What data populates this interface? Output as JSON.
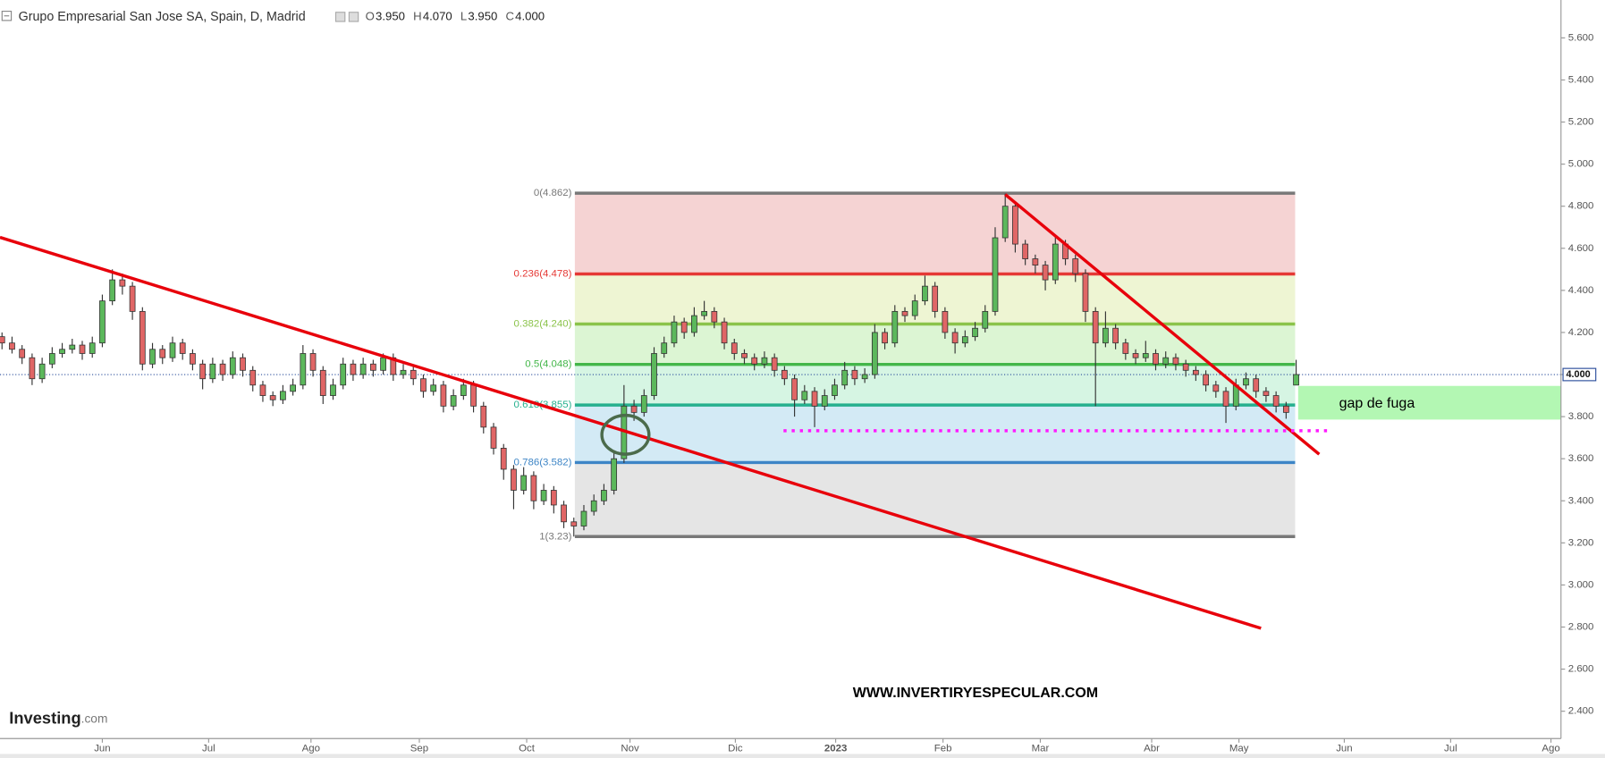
{
  "chart_data": {
    "type": "candlestick",
    "title": "Grupo Empresarial San Jose SA, Spain, D, Madrid",
    "header_ohlc": [
      {
        "key": "O",
        "value": "3.950"
      },
      {
        "key": "H",
        "value": "4.070"
      },
      {
        "key": "L",
        "value": "3.950"
      },
      {
        "key": "C",
        "value": "4.000"
      }
    ],
    "up_color": "#5cb85c",
    "down_color": "#e06666",
    "values": [
      [
        4.18,
        4.2,
        4.12,
        4.15
      ],
      [
        4.15,
        4.18,
        4.1,
        4.12
      ],
      [
        4.12,
        4.14,
        4.05,
        4.08
      ],
      [
        4.08,
        4.1,
        3.95,
        3.98
      ],
      [
        3.98,
        4.08,
        3.96,
        4.05
      ],
      [
        4.05,
        4.13,
        4.03,
        4.1
      ],
      [
        4.1,
        4.15,
        4.08,
        4.12
      ],
      [
        4.12,
        4.17,
        4.1,
        4.14
      ],
      [
        4.14,
        4.16,
        4.07,
        4.1
      ],
      [
        4.1,
        4.18,
        4.08,
        4.15
      ],
      [
        4.15,
        4.38,
        4.13,
        4.35
      ],
      [
        4.35,
        4.5,
        4.33,
        4.45
      ],
      [
        4.45,
        4.48,
        4.38,
        4.42
      ],
      [
        4.42,
        4.44,
        4.26,
        4.3
      ],
      [
        4.3,
        4.32,
        4.02,
        4.05
      ],
      [
        4.05,
        4.15,
        4.03,
        4.12
      ],
      [
        4.12,
        4.14,
        4.05,
        4.08
      ],
      [
        4.08,
        4.18,
        4.06,
        4.15
      ],
      [
        4.15,
        4.17,
        4.07,
        4.1
      ],
      [
        4.1,
        4.12,
        4.02,
        4.05
      ],
      [
        4.05,
        4.07,
        3.93,
        3.98
      ],
      [
        3.98,
        4.08,
        3.96,
        4.05
      ],
      [
        4.05,
        4.07,
        3.97,
        4.0
      ],
      [
        4.0,
        4.11,
        3.98,
        4.08
      ],
      [
        4.08,
        4.1,
        3.99,
        4.02
      ],
      [
        4.02,
        4.04,
        3.92,
        3.95
      ],
      [
        3.95,
        3.97,
        3.87,
        3.9
      ],
      [
        3.9,
        3.92,
        3.85,
        3.88
      ],
      [
        3.88,
        3.95,
        3.86,
        3.92
      ],
      [
        3.92,
        3.98,
        3.9,
        3.95
      ],
      [
        3.95,
        4.14,
        3.93,
        4.1
      ],
      [
        4.1,
        4.12,
        3.99,
        4.02
      ],
      [
        4.02,
        4.04,
        3.86,
        3.9
      ],
      [
        3.9,
        3.98,
        3.88,
        3.95
      ],
      [
        3.95,
        4.08,
        3.93,
        4.05
      ],
      [
        4.05,
        4.07,
        3.97,
        4.0
      ],
      [
        4.0,
        4.08,
        3.98,
        4.05
      ],
      [
        4.05,
        4.07,
        3.99,
        4.02
      ],
      [
        4.02,
        4.1,
        4.0,
        4.08
      ],
      [
        4.08,
        4.1,
        3.97,
        4.0
      ],
      [
        4.0,
        4.05,
        3.98,
        4.02
      ],
      [
        4.02,
        4.04,
        3.95,
        3.98
      ],
      [
        3.98,
        4.0,
        3.89,
        3.92
      ],
      [
        3.92,
        3.98,
        3.9,
        3.95
      ],
      [
        3.95,
        3.97,
        3.82,
        3.85
      ],
      [
        3.85,
        3.93,
        3.83,
        3.9
      ],
      [
        3.9,
        3.98,
        3.88,
        3.95
      ],
      [
        3.95,
        3.97,
        3.82,
        3.85
      ],
      [
        3.85,
        3.87,
        3.72,
        3.75
      ],
      [
        3.75,
        3.77,
        3.62,
        3.65
      ],
      [
        3.65,
        3.67,
        3.5,
        3.55
      ],
      [
        3.55,
        3.57,
        3.36,
        3.45
      ],
      [
        3.45,
        3.56,
        3.43,
        3.52
      ],
      [
        3.52,
        3.54,
        3.36,
        3.4
      ],
      [
        3.4,
        3.48,
        3.38,
        3.45
      ],
      [
        3.45,
        3.47,
        3.34,
        3.38
      ],
      [
        3.38,
        3.4,
        3.27,
        3.3
      ],
      [
        3.3,
        3.32,
        3.23,
        3.28
      ],
      [
        3.28,
        3.38,
        3.26,
        3.35
      ],
      [
        3.35,
        3.43,
        3.33,
        3.4
      ],
      [
        3.4,
        3.48,
        3.38,
        3.45
      ],
      [
        3.45,
        3.63,
        3.43,
        3.6
      ],
      [
        3.6,
        3.95,
        3.58,
        3.85
      ],
      [
        3.85,
        3.88,
        3.78,
        3.82
      ],
      [
        3.82,
        3.93,
        3.8,
        3.9
      ],
      [
        3.9,
        4.13,
        3.88,
        4.1
      ],
      [
        4.1,
        4.18,
        4.08,
        4.15
      ],
      [
        4.15,
        4.28,
        4.13,
        4.25
      ],
      [
        4.25,
        4.27,
        4.17,
        4.2
      ],
      [
        4.2,
        4.32,
        4.18,
        4.28
      ],
      [
        4.28,
        4.35,
        4.26,
        4.3
      ],
      [
        4.3,
        4.32,
        4.22,
        4.25
      ],
      [
        4.25,
        4.27,
        4.12,
        4.15
      ],
      [
        4.15,
        4.17,
        4.07,
        4.1
      ],
      [
        4.1,
        4.12,
        4.05,
        4.08
      ],
      [
        4.08,
        4.1,
        4.02,
        4.05
      ],
      [
        4.05,
        4.11,
        4.03,
        4.08
      ],
      [
        4.08,
        4.1,
        3.99,
        4.02
      ],
      [
        4.02,
        4.04,
        3.95,
        3.98
      ],
      [
        3.98,
        4.0,
        3.8,
        3.88
      ],
      [
        3.88,
        3.95,
        3.86,
        3.92
      ],
      [
        3.92,
        3.94,
        3.75,
        3.85
      ],
      [
        3.85,
        3.93,
        3.83,
        3.9
      ],
      [
        3.9,
        3.98,
        3.88,
        3.95
      ],
      [
        3.95,
        4.06,
        3.93,
        4.02
      ],
      [
        4.02,
        4.04,
        3.95,
        3.98
      ],
      [
        3.98,
        4.03,
        3.96,
        4.0
      ],
      [
        4.0,
        4.24,
        3.98,
        4.2
      ],
      [
        4.2,
        4.22,
        4.12,
        4.15
      ],
      [
        4.15,
        4.33,
        4.13,
        4.3
      ],
      [
        4.3,
        4.32,
        4.25,
        4.28
      ],
      [
        4.28,
        4.38,
        4.26,
        4.35
      ],
      [
        4.35,
        4.47,
        4.33,
        4.42
      ],
      [
        4.42,
        4.44,
        4.27,
        4.3
      ],
      [
        4.3,
        4.32,
        4.17,
        4.2
      ],
      [
        4.2,
        4.22,
        4.1,
        4.15
      ],
      [
        4.15,
        4.21,
        4.13,
        4.18
      ],
      [
        4.18,
        4.25,
        4.16,
        4.22
      ],
      [
        4.22,
        4.33,
        4.2,
        4.3
      ],
      [
        4.3,
        4.7,
        4.28,
        4.65
      ],
      [
        4.65,
        4.86,
        4.63,
        4.8
      ],
      [
        4.8,
        4.82,
        4.58,
        4.62
      ],
      [
        4.62,
        4.64,
        4.52,
        4.55
      ],
      [
        4.55,
        4.57,
        4.48,
        4.52
      ],
      [
        4.52,
        4.54,
        4.4,
        4.45
      ],
      [
        4.45,
        4.66,
        4.43,
        4.62
      ],
      [
        4.62,
        4.64,
        4.52,
        4.55
      ],
      [
        4.55,
        4.57,
        4.44,
        4.48
      ],
      [
        4.48,
        4.5,
        4.25,
        4.3
      ],
      [
        4.3,
        4.32,
        3.85,
        4.15
      ],
      [
        4.15,
        4.3,
        4.13,
        4.22
      ],
      [
        4.22,
        4.24,
        4.12,
        4.15
      ],
      [
        4.15,
        4.17,
        4.07,
        4.1
      ],
      [
        4.1,
        4.12,
        4.05,
        4.08
      ],
      [
        4.08,
        4.16,
        4.06,
        4.1
      ],
      [
        4.1,
        4.12,
        4.02,
        4.05
      ],
      [
        4.05,
        4.11,
        4.03,
        4.08
      ],
      [
        4.08,
        4.1,
        4.02,
        4.05
      ],
      [
        4.05,
        4.07,
        3.99,
        4.02
      ],
      [
        4.02,
        4.04,
        3.97,
        4.0
      ],
      [
        4.0,
        4.02,
        3.92,
        3.95
      ],
      [
        3.95,
        3.97,
        3.89,
        3.92
      ],
      [
        3.92,
        3.94,
        3.77,
        3.85
      ],
      [
        3.85,
        3.98,
        3.83,
        3.95
      ],
      [
        3.95,
        4.01,
        3.93,
        3.98
      ],
      [
        3.98,
        4.0,
        3.89,
        3.92
      ],
      [
        3.92,
        3.94,
        3.87,
        3.9
      ],
      [
        3.9,
        3.92,
        3.82,
        3.85
      ],
      [
        3.85,
        3.87,
        3.79,
        3.82
      ],
      [
        3.95,
        4.07,
        3.95,
        4.0
      ]
    ],
    "xlim": [
      -0.2,
      155.4
    ],
    "xticks": [
      {
        "value": 10.0,
        "label": "Jun"
      },
      {
        "value": 20.6,
        "label": "Jul"
      },
      {
        "value": 30.8,
        "label": "Ago"
      },
      {
        "value": 41.6,
        "label": "Sep"
      },
      {
        "value": 52.3,
        "label": "Oct"
      },
      {
        "value": 62.6,
        "label": "Nov"
      },
      {
        "value": 73.1,
        "label": "Dic"
      },
      {
        "value": 83.1,
        "label": "2023"
      },
      {
        "value": 93.8,
        "label": "Feb"
      },
      {
        "value": 103.5,
        "label": "Mar"
      },
      {
        "value": 114.6,
        "label": "Abr"
      },
      {
        "value": 123.3,
        "label": "May"
      },
      {
        "value": 133.8,
        "label": "Jun"
      },
      {
        "value": 144.4,
        "label": "Jul"
      },
      {
        "value": 154.4,
        "label": "Ago"
      }
    ],
    "ylim": [
      2.27,
      5.78
    ],
    "yticks": [
      {
        "value": 2.4,
        "label": "2.400"
      },
      {
        "value": 2.6,
        "label": "2.600"
      },
      {
        "value": 2.8,
        "label": "2.800"
      },
      {
        "value": 3.0,
        "label": "3.000"
      },
      {
        "value": 3.2,
        "label": "3.200"
      },
      {
        "value": 3.4,
        "label": "3.400"
      },
      {
        "value": 3.6,
        "label": "3.600"
      },
      {
        "value": 3.8,
        "label": "3.800"
      },
      {
        "value": 4.0,
        "label": "4.000"
      },
      {
        "value": 4.2,
        "label": "4.200"
      },
      {
        "value": 4.4,
        "label": "4.400"
      },
      {
        "value": 4.6,
        "label": "4.600"
      },
      {
        "value": 4.8,
        "label": "4.800"
      },
      {
        "value": 5.0,
        "label": "5.000"
      },
      {
        "value": 5.2,
        "label": "5.200"
      },
      {
        "value": 5.4,
        "label": "5.400"
      },
      {
        "value": 5.6,
        "label": "5.600"
      }
    ],
    "last_price": {
      "value": 4.0,
      "label": "4.000",
      "color": "#2a4d9b"
    },
    "fibonacci": {
      "start": 57.1,
      "end": 128.9,
      "levels": [
        {
          "value": 4.862,
          "label": "0(4.862)",
          "color": "#787878",
          "fill": "#f5d3d3"
        },
        {
          "value": 4.478,
          "label": "0.236(4.478)",
          "color": "#e53935",
          "fill": "#eef5d3"
        },
        {
          "value": 4.24,
          "label": "0.382(4.240)",
          "color": "#8bc34a",
          "fill": "#dcf5d3"
        },
        {
          "value": 4.048,
          "label": "0.5(4.048)",
          "color": "#43b649",
          "fill": "#d6f5e3"
        },
        {
          "value": 3.855,
          "label": "0.618(3.855)",
          "color": "#26b08e",
          "fill": "#d3eaf5"
        },
        {
          "value": 3.582,
          "label": "0.786(3.582)",
          "color": "#3d85c6",
          "fill": "#e5e5e5"
        },
        {
          "value": 3.23,
          "label": "1(3.23)",
          "color": "#787878"
        }
      ]
    },
    "trendlines": [
      {
        "x": [
          -0.2,
          125.5
        ],
        "y": [
          4.652,
          2.794
        ],
        "color": "#e8000b"
      },
      {
        "x": [
          100.0,
          131.3
        ],
        "y": [
          4.856,
          3.621
        ],
        "color": "#e8000b"
      }
    ],
    "support_line": {
      "start": 77.9,
      "end": 132.2,
      "value": 3.733,
      "color": "#ff1aff"
    },
    "gap_zone": {
      "start": 129.2,
      "top": 3.946,
      "bottom": 3.786,
      "label": "gap de fuga",
      "color": "#b3f7b3"
    },
    "watermark": "WWW.INVERTIRYESPECULAR.COM",
    "logo": {
      "brand": "Investing",
      "suffix": ".com"
    }
  }
}
